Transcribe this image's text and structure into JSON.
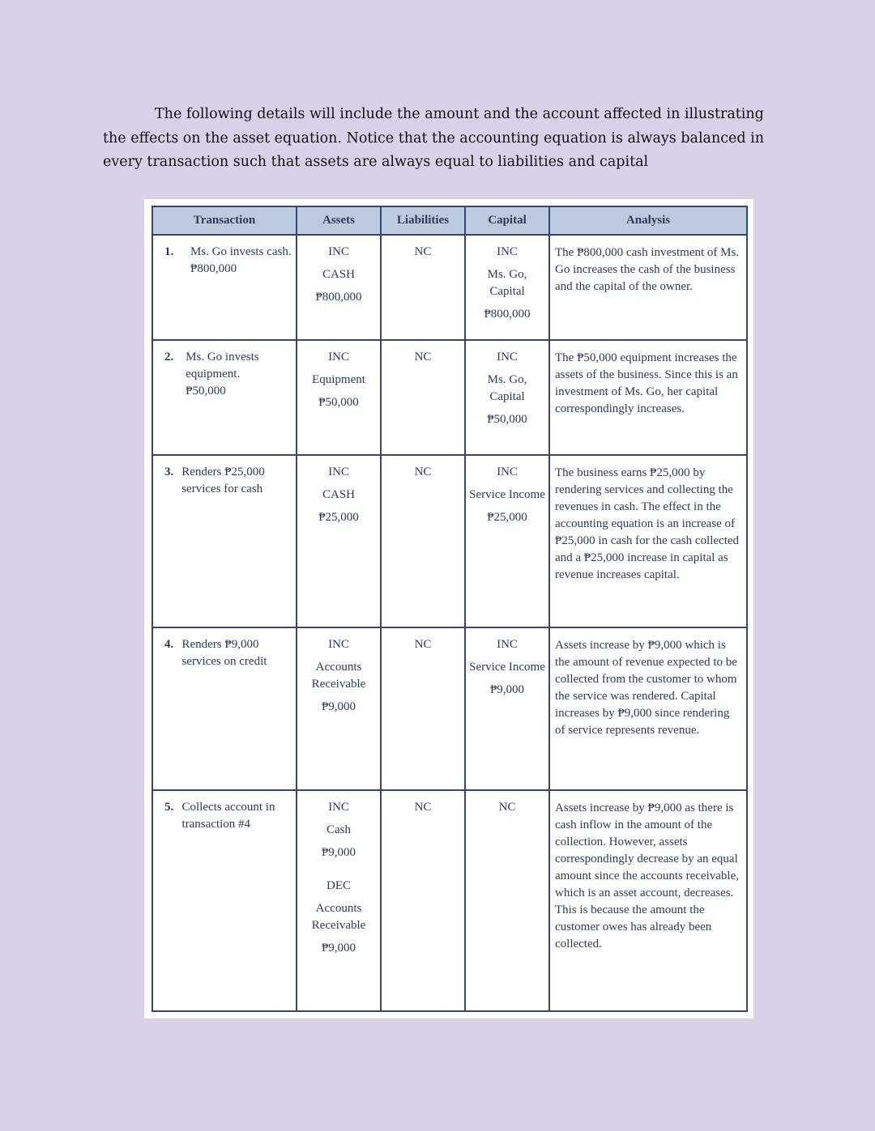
{
  "paragraph": "The following details will include the amount and the account affected in illustrating the effects on the asset equation. Notice that the accounting equation is always balanced in every transaction such that assets are always equal to liabilities and capital",
  "table": {
    "headers": [
      "Transaction",
      "Assets",
      "Liabilities",
      "Capital",
      "Analysis"
    ],
    "rows": [
      {
        "number": "1.",
        "transaction": [
          "Ms. Go invests cash.",
          "₱800,000"
        ],
        "assets": [
          [
            "INC",
            "CASH",
            "₱800,000"
          ]
        ],
        "liabilities": [
          "NC"
        ],
        "capital": [
          "INC",
          "Ms. Go, Capital",
          "₱800,000"
        ],
        "analysis": "The ₱800,000 cash investment of Ms. Go increases the cash of the business and the capital of the owner."
      },
      {
        "number": "2.",
        "transaction": [
          "Ms. Go invests equipment.",
          "₱50,000"
        ],
        "assets": [
          [
            "INC",
            "Equipment",
            "₱50,000"
          ]
        ],
        "liabilities": [
          "NC"
        ],
        "capital": [
          "INC",
          "Ms. Go, Capital",
          "₱50,000"
        ],
        "analysis": "The ₱50,000 equipment increases the assets of the business. Since this is an investment of Ms. Go, her capital correspondingly increases."
      },
      {
        "number": "3.",
        "transaction": [
          "Renders ₱25,000 services for cash"
        ],
        "assets": [
          [
            "INC",
            "CASH",
            "₱25,000"
          ]
        ],
        "liabilities": [
          "NC"
        ],
        "capital": [
          "INC",
          "Service Income",
          "₱25,000"
        ],
        "analysis": "The business earns ₱25,000 by rendering services and collecting the revenues in cash. The effect in the accounting equation is an increase of ₱25,000 in cash for the cash collected and a ₱25,000 increase in capital as revenue increases capital."
      },
      {
        "number": "4.",
        "transaction": [
          "Renders ₱9,000 services on credit"
        ],
        "assets": [
          [
            "INC",
            "Accounts Receivable",
            "₱9,000"
          ]
        ],
        "liabilities": [
          "NC"
        ],
        "capital": [
          "INC",
          "Service Income",
          "₱9,000"
        ],
        "analysis": "Assets increase by ₱9,000 which is the amount of revenue expected to be collected from the customer to whom the service was rendered. Capital increases by ₱9,000 since rendering of service represents revenue."
      },
      {
        "number": "5.",
        "transaction": [
          "Collects account in transaction #4"
        ],
        "assets": [
          [
            "INC",
            "Cash",
            "₱9,000"
          ],
          [
            "DEC",
            "Accounts Receivable",
            "₱9,000"
          ]
        ],
        "liabilities": [
          "NC"
        ],
        "capital": [
          "NC"
        ],
        "analysis": "Assets increase by ₱9,000 as there is cash inflow in the amount of the collection. However, assets correspondingly decrease by an equal amount since the accounts receivable, which is an asset account, decreases. This is because the amount the customer owes has already been collected."
      }
    ]
  }
}
